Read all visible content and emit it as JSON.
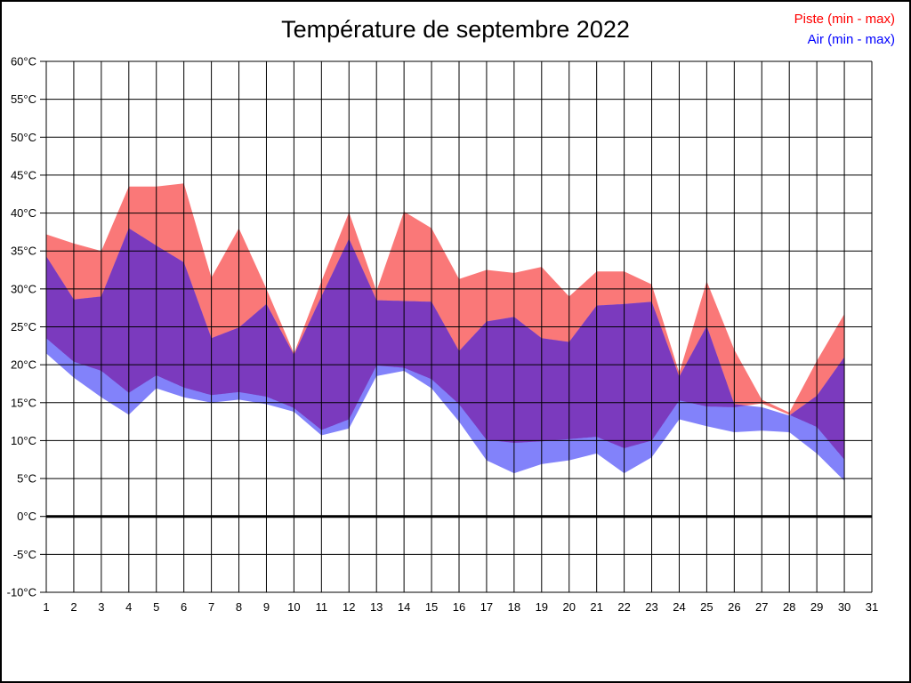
{
  "page": {
    "background": "#ffffff",
    "border_color": "#000000"
  },
  "header": {
    "title": "Température de septembre 2022"
  },
  "legend": {
    "items": [
      {
        "label": "Piste (min - max)",
        "color": "#ff0000"
      },
      {
        "label": "Air (min - max)",
        "color": "#0000ff"
      }
    ]
  },
  "chart_data": {
    "type": "area",
    "title": "Température de septembre 2022",
    "x": [
      1,
      2,
      3,
      4,
      5,
      6,
      7,
      8,
      9,
      10,
      11,
      12,
      13,
      14,
      15,
      16,
      17,
      18,
      19,
      20,
      21,
      22,
      23,
      24,
      25,
      26,
      27,
      28,
      29,
      30
    ],
    "x_tick_labels": [
      "1",
      "2",
      "3",
      "4",
      "5",
      "6",
      "7",
      "8",
      "9",
      "10",
      "11",
      "12",
      "13",
      "14",
      "15",
      "16",
      "17",
      "18",
      "19",
      "20",
      "21",
      "22",
      "23",
      "24",
      "25",
      "26",
      "27",
      "28",
      "29",
      "30",
      "31"
    ],
    "y_tick_labels": [
      "60°C",
      "55°C",
      "50°C",
      "45°C",
      "40°C",
      "35°C",
      "30°C",
      "25°C",
      "20°C",
      "15°C",
      "10°C",
      "5°C",
      "0°C",
      "-5°C",
      "-10°C"
    ],
    "ylim": [
      -10,
      60
    ],
    "xlim": [
      1,
      31
    ],
    "grid": true,
    "zero_line_bold": true,
    "legend_position": "top-right",
    "series": [
      {
        "name": "Piste (min - max)",
        "max": [
          37.2,
          36.0,
          35.0,
          43.5,
          43.5,
          43.9,
          31.5,
          38.0,
          30.0,
          21.5,
          31.0,
          40.1,
          29.7,
          40.2,
          38.0,
          31.3,
          32.5,
          32.1,
          32.9,
          29.0,
          32.3,
          32.3,
          30.6,
          18.9,
          31.0,
          22.0,
          15.4,
          13.7,
          20.5,
          26.7
        ],
        "min": [
          23.5,
          20.4,
          19.2,
          16.3,
          18.6,
          17.0,
          16.0,
          16.4,
          15.8,
          14.3,
          11.4,
          12.8,
          19.9,
          19.6,
          18.1,
          14.8,
          10.1,
          9.7,
          9.9,
          10.2,
          10.5,
          9.0,
          10.0,
          15.3,
          14.5,
          14.4,
          14.9,
          13.4,
          11.8,
          7.5
        ]
      },
      {
        "name": "Air (min - max)",
        "max": [
          34.3,
          28.6,
          29.0,
          38.0,
          35.7,
          33.5,
          23.5,
          24.9,
          28.0,
          21.3,
          29.0,
          36.6,
          28.5,
          28.4,
          28.3,
          21.8,
          25.7,
          26.3,
          23.5,
          23.0,
          27.8,
          28.0,
          28.3,
          18.4,
          25.1,
          14.8,
          14.4,
          13.3,
          15.9,
          21.0
        ],
        "min": [
          21.5,
          18.3,
          15.7,
          13.4,
          16.9,
          15.7,
          15.0,
          15.4,
          14.8,
          13.8,
          10.7,
          11.6,
          18.5,
          19.2,
          16.9,
          12.5,
          7.4,
          5.7,
          6.9,
          7.4,
          8.3,
          5.7,
          7.8,
          12.8,
          11.9,
          11.1,
          11.3,
          11.1,
          8.3,
          4.7
        ]
      }
    ],
    "colors": {
      "piste_fill": "#fa7878",
      "air_fill": "#8282fa",
      "overlap_fill": "#7b3abe",
      "grid": "#000000",
      "zero_line": "#000000",
      "tick_text": "#000000"
    }
  }
}
